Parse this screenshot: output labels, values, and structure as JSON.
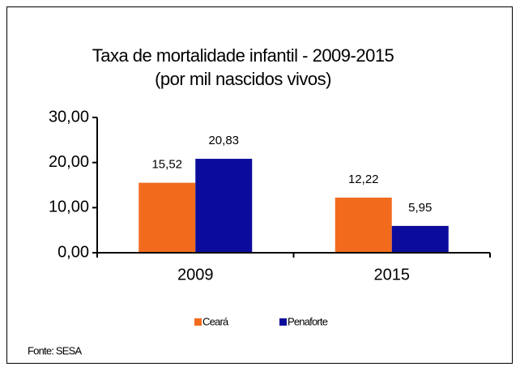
{
  "chart_data": {
    "type": "bar",
    "title": [
      "Taxa de mortalidade infantil - 2009-2015",
      "(por mil nascidos vivos)"
    ],
    "categories": [
      "2009",
      "2015"
    ],
    "series": [
      {
        "name": "Ceará",
        "color": "#f26b1d",
        "values": [
          15.52,
          12.22
        ],
        "value_labels": [
          "15,52",
          "12,22"
        ]
      },
      {
        "name": "Penaforte",
        "color": "#0c0c9c",
        "values": [
          20.83,
          5.95
        ],
        "value_labels": [
          "20,83",
          "5,95"
        ]
      }
    ],
    "ylim": [
      0,
      30
    ],
    "yticks": [
      {
        "value": 0,
        "label": "0,00"
      },
      {
        "value": 10,
        "label": "10,00"
      },
      {
        "value": 20,
        "label": "20,00"
      },
      {
        "value": 30,
        "label": "30,00"
      }
    ],
    "grid": false,
    "legend": "bottom",
    "source": "Fonte: SESA"
  }
}
